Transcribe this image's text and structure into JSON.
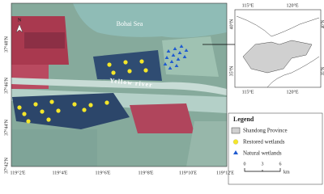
{
  "map": {
    "north": "N",
    "sea": "Bohai Sea",
    "river": "Yellow river",
    "x_ticks": [
      "119°2'E",
      "119°4'E",
      "119°6'E",
      "119°8'E",
      "119°10'E",
      "119°12'E"
    ],
    "y_ticks": [
      "37°48'N",
      "37°46'N",
      "37°44'N",
      "37°42'N"
    ]
  },
  "inset": {
    "top_ticks": [
      "115°E",
      "120°E"
    ],
    "bottom_ticks": [
      "115°E",
      "120°E"
    ],
    "left_ticks": [
      "40°N",
      "35°N"
    ],
    "right_ticks": [
      "40°N",
      "35°N"
    ]
  },
  "legend": {
    "title": "Legend",
    "items": [
      "Shandong Province",
      "Restored wetlands",
      "Natural wetlands"
    ],
    "scale": {
      "ticks": [
        0,
        3,
        6
      ],
      "unit": "km"
    }
  }
}
